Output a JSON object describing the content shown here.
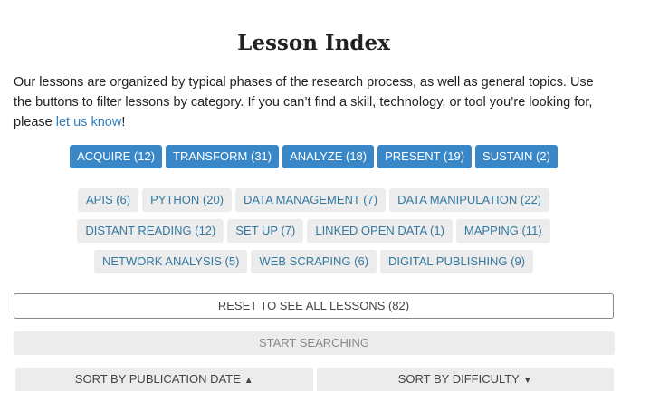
{
  "title": "Lesson Index",
  "intro": {
    "text": "Our lessons are organized by typical phases of the research process, as well as general topics. Use the buttons to filter lessons by category. If you can’t find a skill, technology, or tool you’re looking for, please ",
    "link": "let us know",
    "end": "!"
  },
  "phases": [
    "ACQUIRE (12)",
    "TRANSFORM (31)",
    "ANALYZE (18)",
    "PRESENT (19)",
    "SUSTAIN (2)"
  ],
  "topics": [
    "APIS (6)",
    "PYTHON (20)",
    "DATA MANAGEMENT (7)",
    "DATA MANIPULATION (22)",
    "DISTANT READING (12)",
    "SET UP (7)",
    "LINKED OPEN DATA (1)",
    "MAPPING (11)",
    "NETWORK ANALYSIS (5)",
    "WEB SCRAPING (6)",
    "DIGITAL PUBLISHING (9)"
  ],
  "reset_label": "RESET TO SEE ALL LESSONS (82)",
  "search_label": "START SEARCHING",
  "sort": {
    "date_label": "SORT BY PUBLICATION DATE",
    "date_icon": "▲",
    "difficulty_label": "SORT BY DIFFICULTY",
    "difficulty_icon": "▼"
  },
  "colors": {
    "phase": "#3a87c8",
    "topic_text": "#3479a0"
  }
}
